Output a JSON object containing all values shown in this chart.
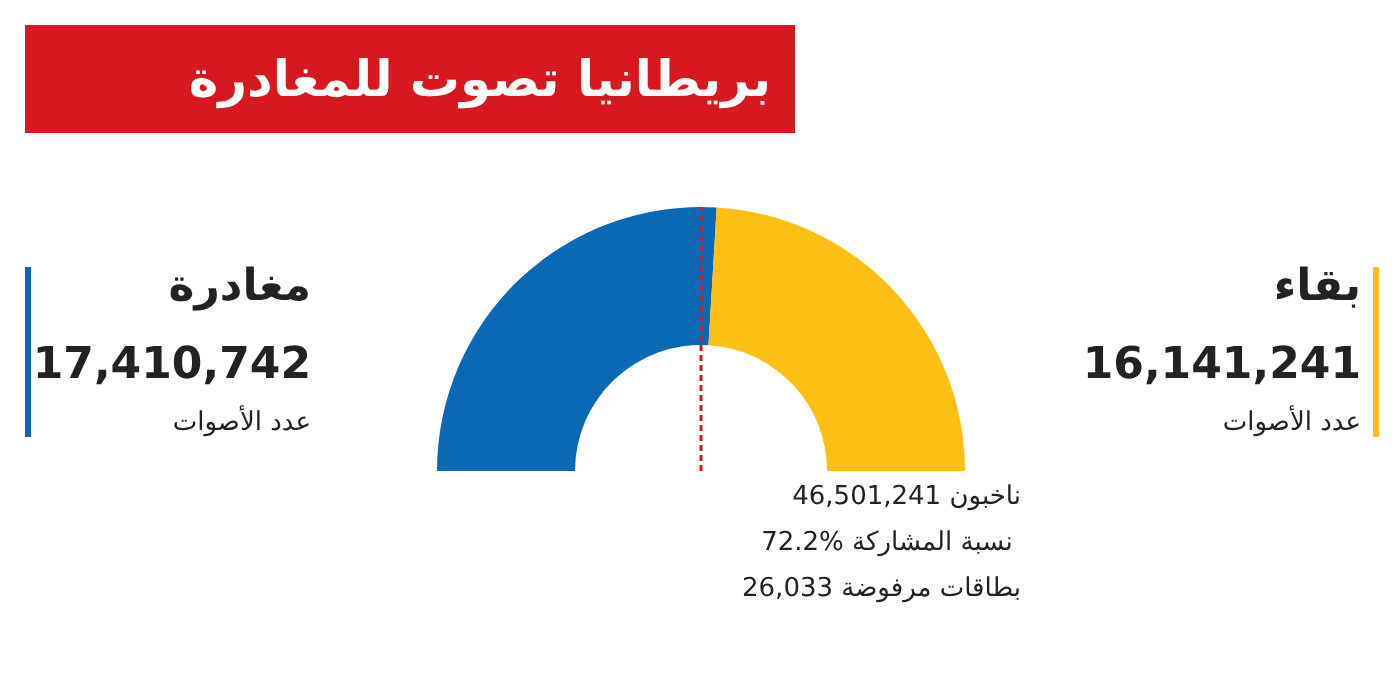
{
  "chart_data": {
    "type": "donut",
    "title": "بريطانيا تصوت للمغادرة",
    "categories": [
      "مغادرة",
      "بقاء"
    ],
    "values": [
      17410742,
      16141241
    ],
    "colors": [
      "#0a68b4",
      "#fcbf14"
    ],
    "value_labels": [
      "17,410,742",
      "16,141,241"
    ],
    "needle": "مغادرة",
    "annotations": [
      "عدد الأصوات",
      "عدد الأصوات",
      "46,501,241 ناخبون",
      "72.2%  نسبة المشاركة",
      "26,033 بطاقات مرفوضة"
    ]
  }
}
